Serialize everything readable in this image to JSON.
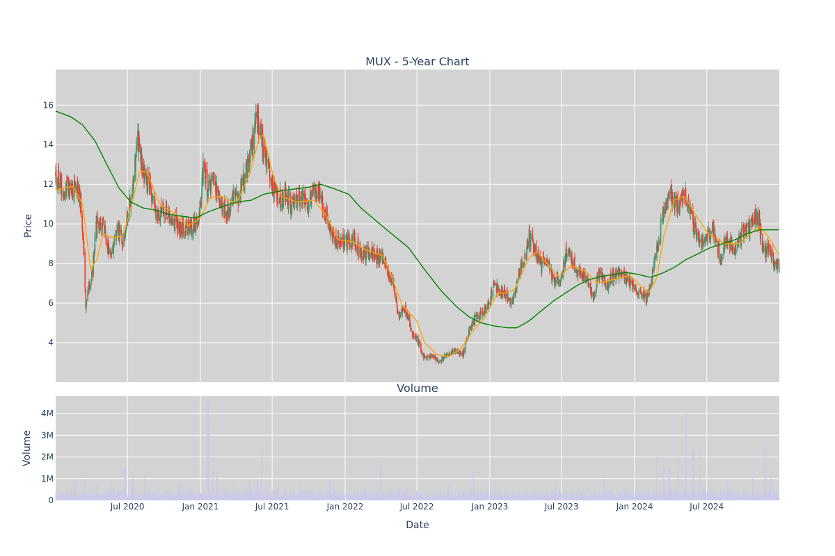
{
  "chart_data": {
    "type": "candlestick",
    "title": "MUX - 5-Year Chart",
    "panels": {
      "price": {
        "ylabel": "Price",
        "ylim": [
          2.0,
          17.8
        ],
        "yticks": [
          4,
          6,
          8,
          10,
          12,
          14,
          16
        ],
        "series": [
          {
            "kind": "candlestick",
            "increasing_color": "#3d9970",
            "decreasing_color": "#ef3b2c"
          },
          {
            "kind": "line",
            "color": "#ffa500"
          },
          {
            "kind": "line",
            "color": "#008000"
          }
        ],
        "anchors_close": [
          [
            "2020-01-02",
            12.5
          ],
          [
            "2020-01-25",
            11.7
          ],
          [
            "2020-02-20",
            11.9
          ],
          [
            "2020-03-05",
            11.2
          ],
          [
            "2020-03-12",
            9.0
          ],
          [
            "2020-03-18",
            5.9
          ],
          [
            "2020-03-25",
            6.8
          ],
          [
            "2020-04-02",
            7.4
          ],
          [
            "2020-04-15",
            10.1
          ],
          [
            "2020-05-01",
            9.8
          ],
          [
            "2020-05-20",
            8.4
          ],
          [
            "2020-06-05",
            9.8
          ],
          [
            "2020-06-18",
            9.2
          ],
          [
            "2020-07-05",
            10.8
          ],
          [
            "2020-07-20",
            13.0
          ],
          [
            "2020-07-28",
            14.3
          ],
          [
            "2020-08-10",
            12.6
          ],
          [
            "2020-08-25",
            12.0
          ],
          [
            "2020-09-10",
            10.7
          ],
          [
            "2020-09-25",
            10.5
          ],
          [
            "2020-10-15",
            10.4
          ],
          [
            "2020-11-05",
            9.8
          ],
          [
            "2020-11-25",
            9.9
          ],
          [
            "2020-12-12",
            9.9
          ],
          [
            "2020-12-28",
            10.1
          ],
          [
            "2021-01-08",
            12.9
          ],
          [
            "2021-01-20",
            11.7
          ],
          [
            "2021-02-05",
            12.1
          ],
          [
            "2021-02-22",
            11.0
          ],
          [
            "2021-03-08",
            10.5
          ],
          [
            "2021-03-25",
            11.2
          ],
          [
            "2021-04-12",
            11.6
          ],
          [
            "2021-04-28",
            12.8
          ],
          [
            "2021-05-12",
            14.0
          ],
          [
            "2021-05-22",
            15.6
          ],
          [
            "2021-06-01",
            14.7
          ],
          [
            "2021-06-10",
            13.6
          ],
          [
            "2021-06-25",
            12.4
          ],
          [
            "2021-07-05",
            11.7
          ],
          [
            "2021-07-20",
            11.2
          ],
          [
            "2021-08-05",
            11.6
          ],
          [
            "2021-08-25",
            10.8
          ],
          [
            "2021-09-10",
            11.5
          ],
          [
            "2021-09-30",
            10.9
          ],
          [
            "2021-10-15",
            11.5
          ],
          [
            "2021-10-28",
            11.6
          ],
          [
            "2021-11-10",
            10.8
          ],
          [
            "2021-11-25",
            9.7
          ],
          [
            "2021-12-10",
            9.0
          ],
          [
            "2022-01-05",
            9.1
          ],
          [
            "2022-01-25",
            9.3
          ],
          [
            "2022-02-10",
            8.4
          ],
          [
            "2022-03-01",
            8.6
          ],
          [
            "2022-03-20",
            8.4
          ],
          [
            "2022-04-10",
            8.3
          ],
          [
            "2022-04-25",
            7.2
          ],
          [
            "2022-05-05",
            6.8
          ],
          [
            "2022-05-15",
            5.4
          ],
          [
            "2022-06-01",
            5.7
          ],
          [
            "2022-06-20",
            4.5
          ],
          [
            "2022-07-05",
            4.0
          ],
          [
            "2022-07-20",
            3.2
          ],
          [
            "2022-08-10",
            3.4
          ],
          [
            "2022-08-25",
            3.0
          ],
          [
            "2022-09-15",
            3.4
          ],
          [
            "2022-10-05",
            3.6
          ],
          [
            "2022-10-25",
            3.4
          ],
          [
            "2022-11-10",
            4.6
          ],
          [
            "2022-11-25",
            5.2
          ],
          [
            "2022-12-10",
            5.4
          ],
          [
            "2023-01-01",
            6.0
          ],
          [
            "2023-01-10",
            7.0
          ],
          [
            "2023-01-25",
            6.6
          ],
          [
            "2023-02-10",
            6.5
          ],
          [
            "2023-02-28",
            6.0
          ],
          [
            "2023-03-15",
            7.5
          ],
          [
            "2023-04-01",
            8.3
          ],
          [
            "2023-04-10",
            9.4
          ],
          [
            "2023-04-25",
            8.6
          ],
          [
            "2023-05-10",
            7.9
          ],
          [
            "2023-05-25",
            8.0
          ],
          [
            "2023-06-10",
            7.2
          ],
          [
            "2023-06-28",
            7.1
          ],
          [
            "2023-07-15",
            8.8
          ],
          [
            "2023-07-30",
            8.0
          ],
          [
            "2023-08-15",
            7.5
          ],
          [
            "2023-09-01",
            7.3
          ],
          [
            "2023-09-20",
            6.3
          ],
          [
            "2023-10-05",
            7.6
          ],
          [
            "2023-10-20",
            6.8
          ],
          [
            "2023-11-05",
            7.3
          ],
          [
            "2023-11-25",
            7.6
          ],
          [
            "2023-12-10",
            7.3
          ],
          [
            "2023-12-28",
            6.9
          ],
          [
            "2024-01-15",
            6.6
          ],
          [
            "2024-01-30",
            6.2
          ],
          [
            "2024-02-15",
            7.4
          ],
          [
            "2024-03-01",
            9.0
          ],
          [
            "2024-03-15",
            10.8
          ],
          [
            "2024-04-01",
            11.4
          ],
          [
            "2024-04-20",
            10.9
          ],
          [
            "2024-05-05",
            11.8
          ],
          [
            "2024-05-20",
            10.5
          ],
          [
            "2024-06-05",
            9.5
          ],
          [
            "2024-06-25",
            9.0
          ],
          [
            "2024-07-15",
            9.8
          ],
          [
            "2024-08-05",
            8.3
          ],
          [
            "2024-08-20",
            9.2
          ],
          [
            "2024-09-10",
            8.8
          ],
          [
            "2024-10-01",
            9.5
          ],
          [
            "2024-10-20",
            9.8
          ],
          [
            "2024-11-05",
            10.6
          ],
          [
            "2024-11-20",
            8.7
          ],
          [
            "2024-12-05",
            8.6
          ],
          [
            "2024-12-20",
            8.2
          ],
          [
            "2024-12-31",
            7.8
          ]
        ],
        "anchors_line_orange": [
          [
            "2020-01-02",
            11.7
          ],
          [
            "2020-02-15",
            11.9
          ],
          [
            "2020-03-10",
            11.0
          ],
          [
            "2020-03-30",
            7.7
          ],
          [
            "2020-04-15",
            8.2
          ],
          [
            "2020-05-01",
            9.5
          ],
          [
            "2020-05-25",
            9.3
          ],
          [
            "2020-06-20",
            9.4
          ],
          [
            "2020-07-10",
            10.8
          ],
          [
            "2020-08-01",
            12.7
          ],
          [
            "2020-08-20",
            12.6
          ],
          [
            "2020-09-20",
            11.0
          ],
          [
            "2020-10-30",
            10.5
          ],
          [
            "2020-12-01",
            9.9
          ],
          [
            "2021-01-01",
            10.3
          ],
          [
            "2021-01-25",
            11.3
          ],
          [
            "2021-02-25",
            11.4
          ],
          [
            "2021-04-01",
            11.0
          ],
          [
            "2021-05-05",
            12.5
          ],
          [
            "2021-05-30",
            14.4
          ],
          [
            "2021-06-10",
            14.5
          ],
          [
            "2021-07-05",
            12.3
          ],
          [
            "2021-07-25",
            11.4
          ],
          [
            "2021-09-01",
            11.1
          ],
          [
            "2021-10-15",
            11.2
          ],
          [
            "2021-11-15",
            10.4
          ],
          [
            "2021-12-15",
            9.2
          ],
          [
            "2022-01-20",
            9.1
          ],
          [
            "2022-02-20",
            8.7
          ],
          [
            "2022-04-05",
            8.4
          ],
          [
            "2022-04-25",
            7.5
          ],
          [
            "2022-05-25",
            5.9
          ],
          [
            "2022-07-01",
            5.1
          ],
          [
            "2022-07-20",
            4.0
          ],
          [
            "2022-08-20",
            3.4
          ],
          [
            "2022-09-20",
            3.3
          ],
          [
            "2022-10-20",
            3.7
          ],
          [
            "2022-11-20",
            4.6
          ],
          [
            "2022-12-20",
            5.3
          ],
          [
            "2023-01-20",
            6.5
          ],
          [
            "2023-02-10",
            6.5
          ],
          [
            "2023-03-05",
            6.7
          ],
          [
            "2023-04-10",
            8.3
          ],
          [
            "2023-04-30",
            8.6
          ],
          [
            "2023-05-25",
            8.0
          ],
          [
            "2023-06-25",
            7.3
          ],
          [
            "2023-07-25",
            7.9
          ],
          [
            "2023-08-30",
            7.6
          ],
          [
            "2023-09-30",
            7.0
          ],
          [
            "2023-11-10",
            7.2
          ],
          [
            "2023-12-20",
            7.4
          ],
          [
            "2024-02-05",
            6.5
          ],
          [
            "2024-02-25",
            7.2
          ],
          [
            "2024-03-15",
            9.4
          ],
          [
            "2024-04-10",
            11.2
          ],
          [
            "2024-05-05",
            11.4
          ],
          [
            "2024-06-05",
            10.4
          ],
          [
            "2024-07-05",
            9.5
          ],
          [
            "2024-08-15",
            9.0
          ],
          [
            "2024-09-20",
            9.0
          ],
          [
            "2024-10-20",
            9.5
          ],
          [
            "2024-11-10",
            9.9
          ],
          [
            "2024-12-05",
            9.3
          ],
          [
            "2024-12-31",
            8.4
          ]
        ],
        "anchors_line_green": [
          [
            "2020-01-02",
            15.7
          ],
          [
            "2020-02-10",
            15.4
          ],
          [
            "2020-03-10",
            15.0
          ],
          [
            "2020-04-10",
            14.2
          ],
          [
            "2020-05-10",
            13.0
          ],
          [
            "2020-06-10",
            11.8
          ],
          [
            "2020-07-10",
            11.1
          ],
          [
            "2020-08-10",
            10.8
          ],
          [
            "2020-09-10",
            10.7
          ],
          [
            "2020-10-10",
            10.5
          ],
          [
            "2020-11-10",
            10.4
          ],
          [
            "2020-12-20",
            10.3
          ],
          [
            "2021-01-20",
            10.6
          ],
          [
            "2021-03-01",
            10.9
          ],
          [
            "2021-04-01",
            11.1
          ],
          [
            "2021-05-10",
            11.2
          ],
          [
            "2021-06-10",
            11.5
          ],
          [
            "2021-08-01",
            11.7
          ],
          [
            "2021-10-01",
            11.85
          ],
          [
            "2021-11-01",
            12.0
          ],
          [
            "2021-12-01",
            11.8
          ],
          [
            "2022-01-10",
            11.5
          ],
          [
            "2022-02-10",
            10.8
          ],
          [
            "2022-04-10",
            9.8
          ],
          [
            "2022-06-10",
            8.8
          ],
          [
            "2022-07-20",
            7.7
          ],
          [
            "2022-09-01",
            6.6
          ],
          [
            "2022-10-10",
            5.8
          ],
          [
            "2022-11-10",
            5.3
          ],
          [
            "2022-12-10",
            5.0
          ],
          [
            "2023-01-10",
            4.85
          ],
          [
            "2023-02-15",
            4.75
          ],
          [
            "2023-03-10",
            4.75
          ],
          [
            "2023-04-10",
            5.1
          ],
          [
            "2023-05-10",
            5.6
          ],
          [
            "2023-06-10",
            6.1
          ],
          [
            "2023-07-10",
            6.5
          ],
          [
            "2023-08-10",
            6.9
          ],
          [
            "2023-09-10",
            7.2
          ],
          [
            "2023-10-10",
            7.35
          ],
          [
            "2023-11-10",
            7.45
          ],
          [
            "2023-12-10",
            7.55
          ],
          [
            "2024-01-10",
            7.45
          ],
          [
            "2024-02-10",
            7.3
          ],
          [
            "2024-03-10",
            7.5
          ],
          [
            "2024-04-10",
            7.8
          ],
          [
            "2024-05-10",
            8.2
          ],
          [
            "2024-06-10",
            8.5
          ],
          [
            "2024-07-10",
            8.8
          ],
          [
            "2024-08-10",
            9.0
          ],
          [
            "2024-09-10",
            9.2
          ],
          [
            "2024-10-10",
            9.5
          ],
          [
            "2024-11-10",
            9.7
          ],
          [
            "2024-12-31",
            9.7
          ]
        ]
      },
      "volume": {
        "title": "Volume",
        "ylabel": "Volume",
        "ylim": [
          0,
          4800000
        ],
        "yticks": [
          0,
          1000000,
          2000000,
          3000000,
          4000000
        ],
        "ytick_labels": [
          "0",
          "1M",
          "2M",
          "3M",
          "4M"
        ],
        "bar_color": "#c8c8ee",
        "baseline": 300000,
        "spikes": [
          [
            "2020-02-20",
            900000
          ],
          [
            "2020-03-15",
            1000000
          ],
          [
            "2020-06-25",
            1500000
          ],
          [
            "2020-07-15",
            1000000
          ],
          [
            "2020-08-15",
            1100000
          ],
          [
            "2021-01-20",
            4700000
          ],
          [
            "2021-01-23",
            3500000
          ],
          [
            "2021-02-01",
            1300000
          ],
          [
            "2021-02-12",
            1400000
          ],
          [
            "2021-05-05",
            900000
          ],
          [
            "2021-05-25",
            900000
          ],
          [
            "2021-06-05",
            2500000
          ],
          [
            "2021-11-25",
            900000
          ],
          [
            "2022-04-01",
            1800000
          ],
          [
            "2022-11-20",
            1500000
          ],
          [
            "2023-01-01",
            1000000
          ],
          [
            "2023-10-15",
            1000000
          ],
          [
            "2024-02-25",
            2000000
          ],
          [
            "2024-03-15",
            1600000
          ],
          [
            "2024-03-28",
            1500000
          ],
          [
            "2024-04-20",
            2100000
          ],
          [
            "2024-05-10",
            4000000
          ],
          [
            "2024-05-28",
            2300000
          ],
          [
            "2024-06-15",
            2200000
          ],
          [
            "2024-10-25",
            1000000
          ],
          [
            "2024-11-25",
            2600000
          ],
          [
            "2024-12-10",
            1000000
          ]
        ]
      }
    },
    "x_range": [
      "2020-01-02",
      "2024-12-31"
    ],
    "xlabel": "Date",
    "xticks": [
      {
        "date": "2020-07-01",
        "label": "Jul 2020"
      },
      {
        "date": "2021-01-01",
        "label": "Jan 2021"
      },
      {
        "date": "2021-07-01",
        "label": "Jul 2021"
      },
      {
        "date": "2022-01-01",
        "label": "Jan 2022"
      },
      {
        "date": "2022-07-01",
        "label": "Jul 2022"
      },
      {
        "date": "2023-01-01",
        "label": "Jan 2023"
      },
      {
        "date": "2023-07-01",
        "label": "Jul 2023"
      },
      {
        "date": "2024-01-01",
        "label": "Jan 2024"
      },
      {
        "date": "2024-07-01",
        "label": "Jul 2024"
      }
    ],
    "grid": true,
    "colors": {
      "plot_bg": "#d3d3d3",
      "grid": "#ffffff",
      "text": "#2a3f5f"
    }
  }
}
